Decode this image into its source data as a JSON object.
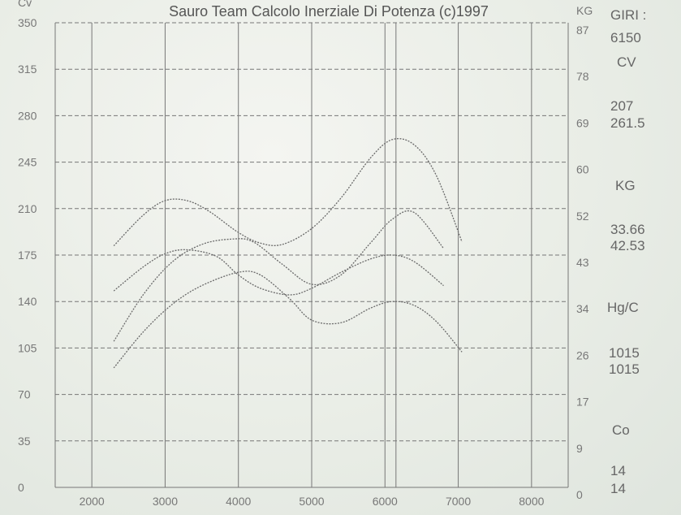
{
  "chart_data": {
    "type": "line",
    "title": "Sauro Team Calcolo Inerziale Di Potenza (c)1997",
    "left_axis_label": "Cv",
    "right_axis_label": "KG",
    "x_ticks": [
      2000,
      3000,
      4000,
      5000,
      6000,
      7000,
      8000
    ],
    "x_range": [
      1500,
      8500
    ],
    "left_ticks": [
      0,
      35,
      70,
      105,
      140,
      175,
      210,
      245,
      280,
      315,
      350
    ],
    "right_ticks": [
      0,
      9,
      17,
      26,
      34,
      43,
      52,
      60,
      69,
      78,
      87
    ],
    "left_range": [
      0,
      350
    ],
    "series": [
      {
        "x": [
          2300,
          2700,
          3000,
          3300,
          3600,
          4000,
          4300,
          4600,
          5000,
          5400,
          5800,
          6100,
          6400,
          6700,
          7050
        ],
        "values": [
          182,
          205,
          216,
          216,
          208,
          192,
          184,
          183,
          195,
          218,
          248,
          262,
          258,
          235,
          185
        ]
      },
      {
        "x": [
          2300,
          2700,
          3000,
          3300,
          3700,
          4000,
          4300,
          4700,
          5000,
          5400,
          5800,
          6100,
          6400,
          6800
        ],
        "values": [
          148,
          166,
          176,
          179,
          174,
          160,
          150,
          145,
          150,
          162,
          172,
          175,
          170,
          152
        ]
      },
      {
        "x": [
          2300,
          2700,
          3100,
          3500,
          3900,
          4200,
          4600,
          5000,
          5400,
          5800,
          6100,
          6400,
          6800
        ],
        "values": [
          110,
          145,
          170,
          183,
          187,
          185,
          168,
          153,
          160,
          184,
          202,
          207,
          180
        ]
      },
      {
        "x": [
          2300,
          2700,
          3100,
          3500,
          4000,
          4300,
          4700,
          5000,
          5400,
          5800,
          6100,
          6400,
          6700,
          7050
        ],
        "values": [
          90,
          117,
          138,
          152,
          162,
          160,
          142,
          126,
          124,
          135,
          140,
          137,
          125,
          102
        ]
      }
    ]
  },
  "side_panel": {
    "giri_label": "GIRI :",
    "giri_value": "6150",
    "cv_label": "CV",
    "cv_value1": "207",
    "cv_value2": "261.5",
    "kg_label": "KG",
    "kg_value1": "33.66",
    "kg_value2": "42.53",
    "hgc_label": "Hg/C",
    "hgc_value1": "1015",
    "hgc_value2": "1015",
    "co_label": "Co",
    "co_value1": "14",
    "co_value2": "14"
  }
}
